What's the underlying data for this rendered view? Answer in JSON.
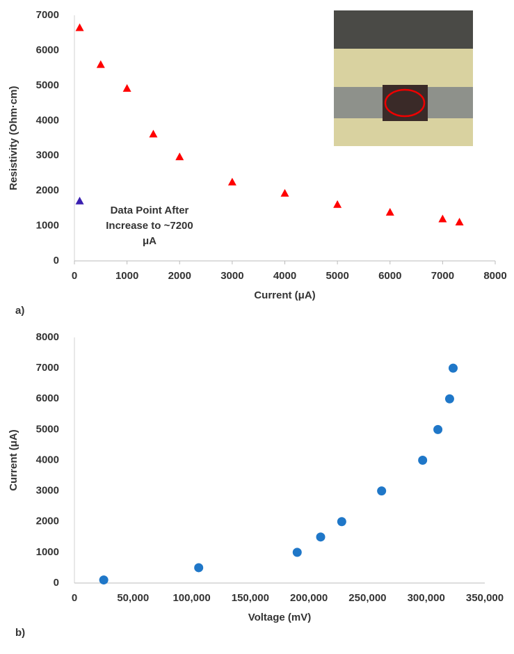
{
  "chart_data": [
    {
      "type": "scatter",
      "panel_label": "a)",
      "x_label": "Current (μA)",
      "y_label": "Resistivity (Ohm·cm)",
      "annotation": [
        "Data Point After",
        "Increase to ~7200",
        "μA"
      ],
      "xlim": [
        0,
        8000
      ],
      "xticks": [
        0,
        1000,
        2000,
        3000,
        4000,
        5000,
        6000,
        7000,
        8000
      ],
      "ylim": [
        0,
        7000
      ],
      "yticks": [
        0,
        1000,
        2000,
        3000,
        4000,
        5000,
        6000,
        7000
      ],
      "series": [
        {
          "color": "#ff0000",
          "marker": "triangle",
          "x": [
            100,
            500,
            1000,
            1500,
            2000,
            3000,
            4000,
            5000,
            6000,
            7000,
            7320
          ],
          "values": [
            6650,
            5600,
            4920,
            3620,
            2970,
            2250,
            1930,
            1610,
            1390,
            1200,
            1110
          ]
        },
        {
          "color": "#3a1fb0",
          "marker": "triangle",
          "x": [
            100
          ],
          "values": [
            1710
          ]
        }
      ]
    },
    {
      "type": "scatter",
      "panel_label": "b)",
      "x_label": "Voltage (mV)",
      "y_label": "Current (μA)",
      "xlim": [
        0,
        350000
      ],
      "xticks": [
        0,
        {
          "value": 50000,
          "label": "50,000"
        },
        {
          "value": 100000,
          "label": "100,000"
        },
        {
          "value": 150000,
          "label": "150,000"
        },
        {
          "value": 200000,
          "label": "200,000"
        },
        {
          "value": 250000,
          "label": "250,000"
        },
        {
          "value": 300000,
          "label": "300,000"
        },
        {
          "value": 350000,
          "label": "350,000"
        }
      ],
      "ylim": [
        0,
        8000
      ],
      "yticks": [
        0,
        1000,
        2000,
        3000,
        4000,
        5000,
        6000,
        7000,
        8000
      ],
      "series": [
        {
          "color": "#1f77c8",
          "marker": "circle",
          "x": [
            25000,
            106000,
            190000,
            210000,
            228000,
            262000,
            297000,
            310000,
            320000,
            323000
          ],
          "values": [
            100,
            500,
            1000,
            1500,
            2000,
            3000,
            4000,
            5000,
            6000,
            7000
          ]
        }
      ]
    }
  ]
}
